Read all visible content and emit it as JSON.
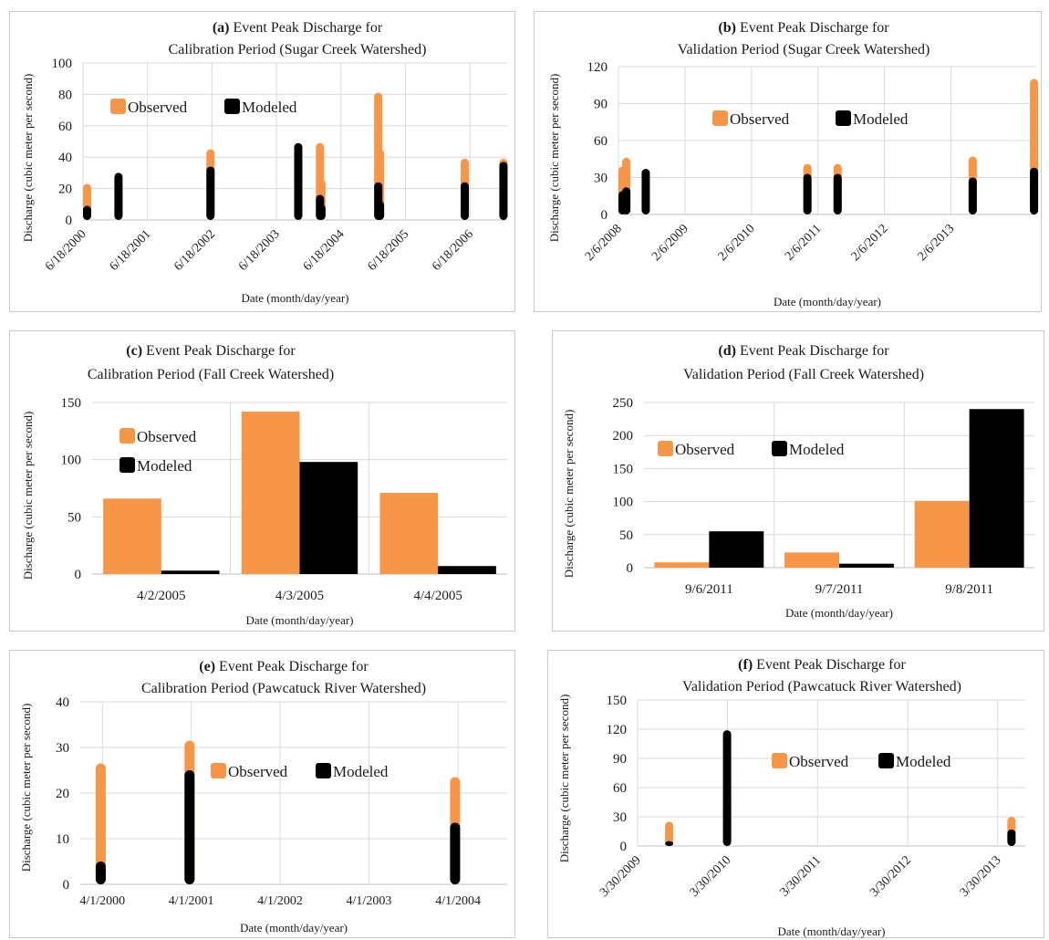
{
  "colors": {
    "observed": "#F79646",
    "modeled": "#000000",
    "grid": "#d9d9d9",
    "axis": "#bfbfbf"
  },
  "chart_data": [
    {
      "id": "a",
      "type": "bar",
      "title_label": "(a)",
      "title_line1": "Event Peak Discharge for",
      "title_line2": "Calibration Period (Sugar Creek Watershed)",
      "xlabel": "Date (month/day/year)",
      "ylabel": "Discharge (cubic meter per second)",
      "ylim": [
        0,
        100
      ],
      "yticks": [
        0,
        20,
        40,
        60,
        80,
        100
      ],
      "x_axis": "date",
      "xlim": [
        "2000-06-18",
        "2007-01-15"
      ],
      "xticks": [
        "6/18/2000",
        "6/18/2001",
        "6/18/2002",
        "6/18/2003",
        "6/18/2004",
        "6/18/2005",
        "6/18/2006"
      ],
      "xtick_dates": [
        "2000-06-18",
        "2001-06-18",
        "2002-06-18",
        "2003-06-18",
        "2004-06-18",
        "2005-06-18",
        "2006-06-18"
      ],
      "legend_position": "upper-left",
      "grid": true,
      "series": [
        {
          "name": "Observed",
          "points": [
            [
              "2000-06-25",
              23
            ],
            [
              "2001-01-05",
              8
            ],
            [
              "2002-06-10",
              45
            ],
            [
              "2003-10-20",
              10
            ],
            [
              "2004-02-20",
              49
            ],
            [
              "2004-02-28",
              26
            ],
            [
              "2005-01-15",
              81
            ],
            [
              "2005-01-25",
              45
            ],
            [
              "2006-05-20",
              39
            ],
            [
              "2006-12-25",
              39
            ]
          ]
        },
        {
          "name": "Modeled",
          "points": [
            [
              "2000-06-25",
              9
            ],
            [
              "2001-01-05",
              30
            ],
            [
              "2002-06-10",
              34
            ],
            [
              "2003-10-20",
              49
            ],
            [
              "2004-02-20",
              16
            ],
            [
              "2004-02-28",
              10
            ],
            [
              "2005-01-15",
              24
            ],
            [
              "2005-01-25",
              12
            ],
            [
              "2006-05-20",
              24
            ],
            [
              "2006-12-25",
              37
            ]
          ]
        }
      ]
    },
    {
      "id": "b",
      "type": "bar",
      "title_label": "(b)",
      "title_line1": "Event Peak Discharge for",
      "title_line2": "Validation Period (Sugar Creek Watershed)",
      "xlabel": "Date (month/day/year)",
      "ylabel": "Discharge (cubic meter per second)",
      "ylim": [
        0,
        120
      ],
      "yticks": [
        0,
        30,
        60,
        90,
        120
      ],
      "x_axis": "date",
      "xlim": [
        "2008-02-06",
        "2014-05-20"
      ],
      "xticks": [
        "2/6/2008",
        "2/6/2009",
        "2/6/2010",
        "2/6/2011",
        "2/6/2012",
        "2/6/2013"
      ],
      "xtick_dates": [
        "2008-02-06",
        "2009-02-06",
        "2010-02-06",
        "2011-02-06",
        "2012-02-06",
        "2013-02-06"
      ],
      "legend_position": "middle",
      "grid": true,
      "series": [
        {
          "name": "Observed",
          "points": [
            [
              "2008-02-08",
              39
            ],
            [
              "2008-03-20",
              46
            ],
            [
              "2008-07-05",
              22
            ],
            [
              "2010-12-10",
              41
            ],
            [
              "2011-05-25",
              41
            ],
            [
              "2013-06-05",
              47
            ],
            [
              "2014-05-08",
              110
            ]
          ]
        },
        {
          "name": "Modeled",
          "points": [
            [
              "2008-02-08",
              19
            ],
            [
              "2008-03-20",
              22
            ],
            [
              "2008-07-05",
              37
            ],
            [
              "2010-12-10",
              33
            ],
            [
              "2011-05-25",
              33
            ],
            [
              "2013-06-05",
              30
            ],
            [
              "2014-05-08",
              38
            ]
          ]
        }
      ]
    },
    {
      "id": "c",
      "type": "bar",
      "title_label": "(c)",
      "title_line1": "Event Peak Discharge for",
      "title_line2": "Calibration Period (Fall Creek Watershed)",
      "xlabel": "Date (month/day/year)",
      "ylabel": "Discharge (cubic meter per second)",
      "ylim": [
        0,
        150
      ],
      "yticks": [
        0,
        50,
        100,
        150
      ],
      "x_axis": "category",
      "categories": [
        "4/2/2005",
        "4/3/2005",
        "4/4/2005"
      ],
      "legend_position": "upper-left-stacked",
      "grid": true,
      "series": [
        {
          "name": "Observed",
          "values": [
            66,
            142,
            71
          ]
        },
        {
          "name": "Modeled",
          "values": [
            3,
            98,
            7
          ]
        }
      ]
    },
    {
      "id": "d",
      "type": "bar",
      "title_label": "(d)",
      "title_line1": "Event Peak Discharge for",
      "title_line2": "Validation Period (Fall Creek Watershed)",
      "xlabel": "Date (month/day/year)",
      "ylabel": "Discharge (cubic meter per second)",
      "ylim": [
        0,
        250
      ],
      "yticks": [
        0,
        50,
        100,
        150,
        200,
        250
      ],
      "x_axis": "category",
      "categories": [
        "9/6/2011",
        "9/7/2011",
        "9/8/2011"
      ],
      "legend_position": "upper-left",
      "grid": true,
      "series": [
        {
          "name": "Observed",
          "values": [
            8,
            23,
            101
          ]
        },
        {
          "name": "Modeled",
          "values": [
            55,
            6,
            240
          ]
        }
      ]
    },
    {
      "id": "e",
      "type": "bar",
      "title_label": "(e)",
      "title_line1": "Event Peak Discharge for",
      "title_line2": "Calibration Period (Pawcatuck River Watershed)",
      "xlabel": "Date (month/day/year)",
      "ylabel": "Discharge (cubic meter per second)",
      "ylim": [
        0,
        40
      ],
      "yticks": [
        0,
        10,
        20,
        30,
        40
      ],
      "x_axis": "date",
      "xlim": [
        "2000-01-01",
        "2004-10-20"
      ],
      "xticks": [
        "4/1/2000",
        "4/1/2001",
        "4/1/2002",
        "4/1/2003",
        "4/1/2004"
      ],
      "xtick_dates": [
        "2000-04-01",
        "2001-04-01",
        "2002-04-01",
        "2003-04-01",
        "2004-04-01"
      ],
      "legend_position": "middle",
      "grid": true,
      "series": [
        {
          "name": "Observed",
          "points": [
            [
              "2000-03-25",
              26.5
            ],
            [
              "2001-03-25",
              31.5
            ],
            [
              "2004-03-20",
              23.5
            ]
          ]
        },
        {
          "name": "Modeled",
          "points": [
            [
              "2000-03-25",
              5
            ],
            [
              "2001-03-25",
              25
            ],
            [
              "2004-03-20",
              13.5
            ]
          ]
        }
      ]
    },
    {
      "id": "f",
      "type": "bar",
      "title_label": "(f)",
      "title_line1": "Event Peak Discharge for",
      "title_line2": "Validation Period (Pawcatuck River Watershed)",
      "xlabel": "Date (month/day/year)",
      "ylabel": "Discharge (cubic meter per second)",
      "ylim": [
        0,
        150
      ],
      "yticks": [
        0,
        30,
        60,
        90,
        120,
        150
      ],
      "x_axis": "date",
      "xlim": [
        "2009-03-30",
        "2013-07-20"
      ],
      "xticks": [
        "3/30/2009",
        "3/30/2010",
        "3/30/2011",
        "3/30/2012",
        "3/30/2013"
      ],
      "xtick_dates": [
        "2009-03-30",
        "2010-03-30",
        "2011-03-30",
        "2012-03-30",
        "2013-03-30"
      ],
      "legend_position": "middle",
      "grid": true,
      "series": [
        {
          "name": "Observed",
          "points": [
            [
              "2009-08-05",
              25
            ],
            [
              "2010-03-28",
              50
            ],
            [
              "2013-05-25",
              30
            ]
          ]
        },
        {
          "name": "Modeled",
          "points": [
            [
              "2009-08-05",
              5
            ],
            [
              "2010-03-28",
              119
            ],
            [
              "2013-05-25",
              17
            ]
          ]
        }
      ]
    }
  ]
}
